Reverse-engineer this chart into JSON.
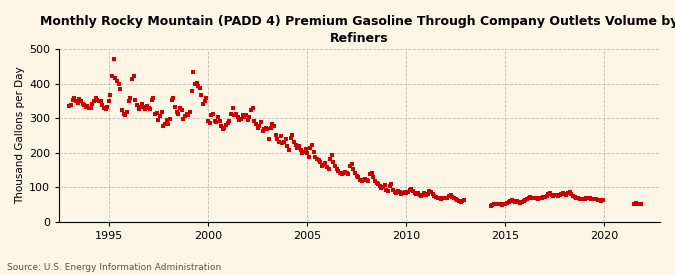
{
  "title": "Monthly Rocky Mountain (PADD 4) Premium Gasoline Through Company Outlets Volume by\nRefiners",
  "ylabel": "Thousand Gallons per Day",
  "source": "Source: U.S. Energy Information Administration",
  "background_color": "#fdf5e6",
  "dot_color": "#cc0000",
  "grid_color": "#b0b0b0",
  "ylim": [
    0,
    500
  ],
  "yticks": [
    0,
    100,
    200,
    300,
    400,
    500
  ],
  "xlim_start": 1992.5,
  "xlim_end": 2022.8,
  "xticks": [
    1995,
    2000,
    2005,
    2010,
    2015,
    2020
  ],
  "data": [
    [
      1993.0,
      335
    ],
    [
      1993.08,
      338
    ],
    [
      1993.17,
      352
    ],
    [
      1993.25,
      358
    ],
    [
      1993.33,
      350
    ],
    [
      1993.42,
      345
    ],
    [
      1993.5,
      355
    ],
    [
      1993.58,
      350
    ],
    [
      1993.67,
      342
    ],
    [
      1993.75,
      338
    ],
    [
      1993.83,
      332
    ],
    [
      1993.92,
      336
    ],
    [
      1994.0,
      330
    ],
    [
      1994.08,
      328
    ],
    [
      1994.17,
      342
    ],
    [
      1994.25,
      348
    ],
    [
      1994.33,
      358
    ],
    [
      1994.42,
      352
    ],
    [
      1994.5,
      348
    ],
    [
      1994.58,
      350
    ],
    [
      1994.67,
      338
    ],
    [
      1994.75,
      330
    ],
    [
      1994.83,
      325
    ],
    [
      1994.92,
      332
    ],
    [
      1995.0,
      350
    ],
    [
      1995.08,
      368
    ],
    [
      1995.17,
      422
    ],
    [
      1995.25,
      472
    ],
    [
      1995.33,
      415
    ],
    [
      1995.42,
      408
    ],
    [
      1995.5,
      398
    ],
    [
      1995.58,
      385
    ],
    [
      1995.67,
      322
    ],
    [
      1995.75,
      312
    ],
    [
      1995.83,
      308
    ],
    [
      1995.92,
      318
    ],
    [
      1996.0,
      348
    ],
    [
      1996.08,
      358
    ],
    [
      1996.17,
      412
    ],
    [
      1996.25,
      422
    ],
    [
      1996.33,
      352
    ],
    [
      1996.42,
      338
    ],
    [
      1996.5,
      325
    ],
    [
      1996.58,
      332
    ],
    [
      1996.67,
      342
    ],
    [
      1996.75,
      332
    ],
    [
      1996.83,
      325
    ],
    [
      1996.92,
      335
    ],
    [
      1997.0,
      330
    ],
    [
      1997.08,
      325
    ],
    [
      1997.17,
      352
    ],
    [
      1997.25,
      358
    ],
    [
      1997.33,
      312
    ],
    [
      1997.42,
      315
    ],
    [
      1997.5,
      295
    ],
    [
      1997.58,
      305
    ],
    [
      1997.67,
      318
    ],
    [
      1997.75,
      278
    ],
    [
      1997.83,
      282
    ],
    [
      1997.92,
      295
    ],
    [
      1998.0,
      282
    ],
    [
      1998.08,
      298
    ],
    [
      1998.17,
      352
    ],
    [
      1998.25,
      358
    ],
    [
      1998.33,
      332
    ],
    [
      1998.42,
      318
    ],
    [
      1998.5,
      312
    ],
    [
      1998.58,
      328
    ],
    [
      1998.67,
      322
    ],
    [
      1998.75,
      298
    ],
    [
      1998.83,
      305
    ],
    [
      1998.92,
      312
    ],
    [
      1999.0,
      308
    ],
    [
      1999.08,
      318
    ],
    [
      1999.17,
      378
    ],
    [
      1999.25,
      432
    ],
    [
      1999.33,
      398
    ],
    [
      1999.42,
      402
    ],
    [
      1999.5,
      392
    ],
    [
      1999.58,
      388
    ],
    [
      1999.67,
      368
    ],
    [
      1999.75,
      342
    ],
    [
      1999.83,
      348
    ],
    [
      1999.92,
      358
    ],
    [
      2000.0,
      292
    ],
    [
      2000.08,
      285
    ],
    [
      2000.17,
      308
    ],
    [
      2000.25,
      312
    ],
    [
      2000.33,
      292
    ],
    [
      2000.42,
      288
    ],
    [
      2000.5,
      302
    ],
    [
      2000.58,
      292
    ],
    [
      2000.67,
      278
    ],
    [
      2000.75,
      268
    ],
    [
      2000.83,
      272
    ],
    [
      2000.92,
      280
    ],
    [
      2001.0,
      285
    ],
    [
      2001.08,
      292
    ],
    [
      2001.17,
      312
    ],
    [
      2001.25,
      328
    ],
    [
      2001.33,
      308
    ],
    [
      2001.42,
      312
    ],
    [
      2001.5,
      302
    ],
    [
      2001.58,
      295
    ],
    [
      2001.67,
      298
    ],
    [
      2001.75,
      308
    ],
    [
      2001.83,
      302
    ],
    [
      2001.92,
      310
    ],
    [
      2002.0,
      295
    ],
    [
      2002.08,
      302
    ],
    [
      2002.17,
      322
    ],
    [
      2002.25,
      328
    ],
    [
      2002.33,
      292
    ],
    [
      2002.42,
      282
    ],
    [
      2002.5,
      272
    ],
    [
      2002.58,
      278
    ],
    [
      2002.67,
      288
    ],
    [
      2002.75,
      262
    ],
    [
      2002.83,
      268
    ],
    [
      2002.92,
      272
    ],
    [
      2003.0,
      268
    ],
    [
      2003.08,
      238
    ],
    [
      2003.17,
      272
    ],
    [
      2003.25,
      282
    ],
    [
      2003.33,
      278
    ],
    [
      2003.42,
      252
    ],
    [
      2003.5,
      238
    ],
    [
      2003.58,
      232
    ],
    [
      2003.67,
      248
    ],
    [
      2003.75,
      228
    ],
    [
      2003.83,
      232
    ],
    [
      2003.92,
      240
    ],
    [
      2004.0,
      218
    ],
    [
      2004.08,
      208
    ],
    [
      2004.17,
      242
    ],
    [
      2004.25,
      252
    ],
    [
      2004.33,
      232
    ],
    [
      2004.42,
      222
    ],
    [
      2004.5,
      212
    ],
    [
      2004.58,
      218
    ],
    [
      2004.67,
      208
    ],
    [
      2004.75,
      198
    ],
    [
      2004.83,
      202
    ],
    [
      2004.92,
      210
    ],
    [
      2005.0,
      198
    ],
    [
      2005.08,
      188
    ],
    [
      2005.17,
      212
    ],
    [
      2005.25,
      222
    ],
    [
      2005.33,
      202
    ],
    [
      2005.42,
      188
    ],
    [
      2005.5,
      182
    ],
    [
      2005.58,
      178
    ],
    [
      2005.67,
      172
    ],
    [
      2005.75,
      162
    ],
    [
      2005.83,
      165
    ],
    [
      2005.92,
      170
    ],
    [
      2006.0,
      158
    ],
    [
      2006.08,
      152
    ],
    [
      2006.17,
      182
    ],
    [
      2006.25,
      192
    ],
    [
      2006.33,
      172
    ],
    [
      2006.42,
      162
    ],
    [
      2006.5,
      152
    ],
    [
      2006.58,
      148
    ],
    [
      2006.67,
      142
    ],
    [
      2006.75,
      138
    ],
    [
      2006.83,
      140
    ],
    [
      2006.92,
      145
    ],
    [
      2007.0,
      142
    ],
    [
      2007.08,
      138
    ],
    [
      2007.17,
      162
    ],
    [
      2007.25,
      168
    ],
    [
      2007.33,
      152
    ],
    [
      2007.42,
      142
    ],
    [
      2007.5,
      132
    ],
    [
      2007.58,
      128
    ],
    [
      2007.67,
      122
    ],
    [
      2007.75,
      118
    ],
    [
      2007.83,
      120
    ],
    [
      2007.92,
      125
    ],
    [
      2008.0,
      122
    ],
    [
      2008.08,
      118
    ],
    [
      2008.17,
      138
    ],
    [
      2008.25,
      142
    ],
    [
      2008.33,
      128
    ],
    [
      2008.42,
      118
    ],
    [
      2008.5,
      112
    ],
    [
      2008.58,
      108
    ],
    [
      2008.67,
      102
    ],
    [
      2008.75,
      98
    ],
    [
      2008.83,
      100
    ],
    [
      2008.92,
      105
    ],
    [
      2009.0,
      92
    ],
    [
      2009.08,
      88
    ],
    [
      2009.17,
      102
    ],
    [
      2009.25,
      108
    ],
    [
      2009.33,
      92
    ],
    [
      2009.42,
      85
    ],
    [
      2009.5,
      82
    ],
    [
      2009.58,
      88
    ],
    [
      2009.67,
      85
    ],
    [
      2009.75,
      80
    ],
    [
      2009.83,
      82
    ],
    [
      2009.92,
      85
    ],
    [
      2010.0,
      82
    ],
    [
      2010.08,
      85
    ],
    [
      2010.17,
      92
    ],
    [
      2010.25,
      95
    ],
    [
      2010.33,
      88
    ],
    [
      2010.42,
      82
    ],
    [
      2010.5,
      80
    ],
    [
      2010.58,
      82
    ],
    [
      2010.67,
      78
    ],
    [
      2010.75,
      75
    ],
    [
      2010.83,
      78
    ],
    [
      2010.92,
      82
    ],
    [
      2011.0,
      78
    ],
    [
      2011.08,
      80
    ],
    [
      2011.17,
      88
    ],
    [
      2011.25,
      85
    ],
    [
      2011.33,
      80
    ],
    [
      2011.42,
      75
    ],
    [
      2011.5,
      72
    ],
    [
      2011.58,
      70
    ],
    [
      2011.67,
      68
    ],
    [
      2011.75,
      65
    ],
    [
      2011.83,
      68
    ],
    [
      2011.92,
      70
    ],
    [
      2012.0,
      68
    ],
    [
      2012.08,
      70
    ],
    [
      2012.17,
      75
    ],
    [
      2012.25,
      78
    ],
    [
      2012.33,
      72
    ],
    [
      2012.42,
      68
    ],
    [
      2012.5,
      65
    ],
    [
      2012.58,
      62
    ],
    [
      2012.67,
      60
    ],
    [
      2012.75,
      58
    ],
    [
      2012.83,
      60
    ],
    [
      2012.92,
      62
    ],
    [
      2014.25,
      45
    ],
    [
      2014.33,
      48
    ],
    [
      2014.42,
      50
    ],
    [
      2014.5,
      52
    ],
    [
      2014.58,
      50
    ],
    [
      2014.67,
      52
    ],
    [
      2014.75,
      50
    ],
    [
      2014.83,
      48
    ],
    [
      2014.92,
      50
    ],
    [
      2015.0,
      52
    ],
    [
      2015.08,
      55
    ],
    [
      2015.17,
      58
    ],
    [
      2015.25,
      60
    ],
    [
      2015.33,
      62
    ],
    [
      2015.42,
      60
    ],
    [
      2015.5,
      58
    ],
    [
      2015.58,
      60
    ],
    [
      2015.67,
      58
    ],
    [
      2015.75,
      55
    ],
    [
      2015.83,
      58
    ],
    [
      2015.92,
      60
    ],
    [
      2016.0,
      62
    ],
    [
      2016.08,
      65
    ],
    [
      2016.17,
      68
    ],
    [
      2016.25,
      72
    ],
    [
      2016.33,
      70
    ],
    [
      2016.42,
      68
    ],
    [
      2016.5,
      70
    ],
    [
      2016.58,
      68
    ],
    [
      2016.67,
      65
    ],
    [
      2016.75,
      68
    ],
    [
      2016.83,
      70
    ],
    [
      2016.92,
      72
    ],
    [
      2017.0,
      72
    ],
    [
      2017.08,
      75
    ],
    [
      2017.17,
      80
    ],
    [
      2017.25,
      82
    ],
    [
      2017.33,
      78
    ],
    [
      2017.42,
      75
    ],
    [
      2017.5,
      78
    ],
    [
      2017.58,
      78
    ],
    [
      2017.67,
      75
    ],
    [
      2017.75,
      78
    ],
    [
      2017.83,
      80
    ],
    [
      2017.92,
      82
    ],
    [
      2018.0,
      80
    ],
    [
      2018.08,
      78
    ],
    [
      2018.17,
      82
    ],
    [
      2018.25,
      85
    ],
    [
      2018.33,
      80
    ],
    [
      2018.42,
      75
    ],
    [
      2018.5,
      72
    ],
    [
      2018.58,
      70
    ],
    [
      2018.67,
      68
    ],
    [
      2018.75,
      65
    ],
    [
      2018.83,
      65
    ],
    [
      2018.92,
      65
    ],
    [
      2019.0,
      65
    ],
    [
      2019.08,
      68
    ],
    [
      2019.17,
      70
    ],
    [
      2019.25,
      68
    ],
    [
      2019.33,
      65
    ],
    [
      2019.42,
      65
    ],
    [
      2019.5,
      65
    ],
    [
      2019.58,
      65
    ],
    [
      2019.67,
      62
    ],
    [
      2019.75,
      62
    ],
    [
      2019.83,
      60
    ],
    [
      2019.92,
      62
    ],
    [
      2021.5,
      52
    ],
    [
      2021.58,
      55
    ],
    [
      2021.67,
      52
    ],
    [
      2021.75,
      50
    ],
    [
      2021.83,
      50
    ]
  ]
}
